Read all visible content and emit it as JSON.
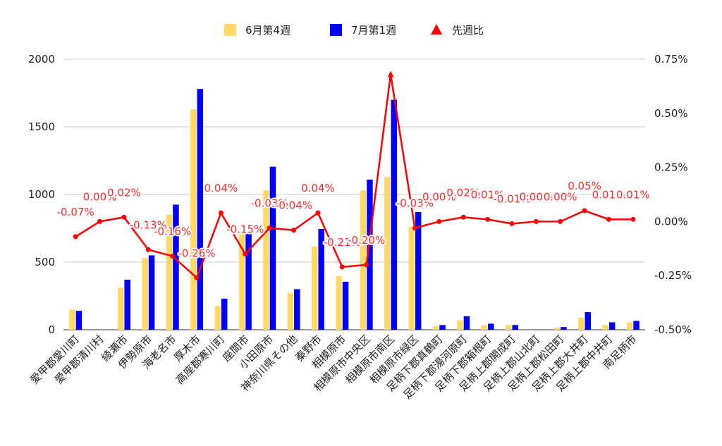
{
  "chart_data": {
    "type": "bar",
    "categories": [
      "愛甲郡愛川町",
      "愛甲郡清川村",
      "綾瀬市",
      "伊勢原市",
      "海老名市",
      "厚木市",
      "高座郡寒川町",
      "座間市",
      "小田原市",
      "神奈川県その他",
      "秦野市",
      "相模原市",
      "相模原市中央区",
      "相模原市南区",
      "相模原市緑区",
      "足柄下郡真鶴町",
      "足柄下郡湯河原町",
      "足柄下郡箱根町",
      "足柄上郡開成町",
      "足柄上郡山北町",
      "足柄上郡松田町",
      "足柄上郡大井町",
      "足柄上郡中井町",
      "南足柄市"
    ],
    "series": [
      {
        "name": "6月第4週",
        "type": "bar",
        "axis": "left",
        "color": "#ffd966",
        "values": [
          150,
          0,
          310,
          530,
          850,
          1630,
          175,
          720,
          1030,
          270,
          615,
          395,
          1030,
          1130,
          760,
          25,
          70,
          35,
          35,
          0,
          15,
          90,
          35,
          55
        ]
      },
      {
        "name": "7月第1週",
        "type": "bar",
        "axis": "left",
        "color": "#0000ff",
        "values": [
          140,
          0,
          370,
          550,
          925,
          1780,
          230,
          710,
          1205,
          300,
          745,
          355,
          1110,
          1700,
          870,
          35,
          100,
          45,
          35,
          0,
          20,
          130,
          55,
          65
        ]
      },
      {
        "name": "先週比",
        "type": "line",
        "axis": "right",
        "color": "#ff0000",
        "values": [
          -0.07,
          0.0,
          0.02,
          -0.13,
          -0.16,
          -0.26,
          0.04,
          -0.15,
          -0.03,
          -0.04,
          0.04,
          -0.21,
          -0.2,
          0.68,
          -0.03,
          0.0,
          0.02,
          0.01,
          -0.01,
          0.0,
          0.0,
          0.05,
          0.01,
          0.01
        ],
        "labels": [
          "-0.07%",
          "0.00%",
          "0.02%",
          "-0.13%",
          "-0.16%",
          "-0.26%",
          "0.04%",
          "-0.15%",
          "-0.03%",
          "-0.04%",
          "0.04%",
          "-0.21%",
          "-0.20%",
          "",
          "-0.03%",
          "0.00%",
          "0.02%",
          "0.01%",
          "-0.01%",
          "0.00%",
          "0.00%",
          "0.05%",
          "0.01%",
          "0.01%"
        ]
      }
    ],
    "y_left": {
      "min": 0,
      "max": 2000,
      "ticks": [
        "0",
        "500",
        "1000",
        "1500",
        "2000"
      ]
    },
    "y_right": {
      "min": -0.5,
      "max": 0.75,
      "ticks": [
        "-0.50%",
        "-0.25%",
        "0.00%",
        "0.25%",
        "0.50%",
        "0.75%"
      ]
    },
    "legend": {
      "placement": "top-center"
    },
    "grid": true
  }
}
